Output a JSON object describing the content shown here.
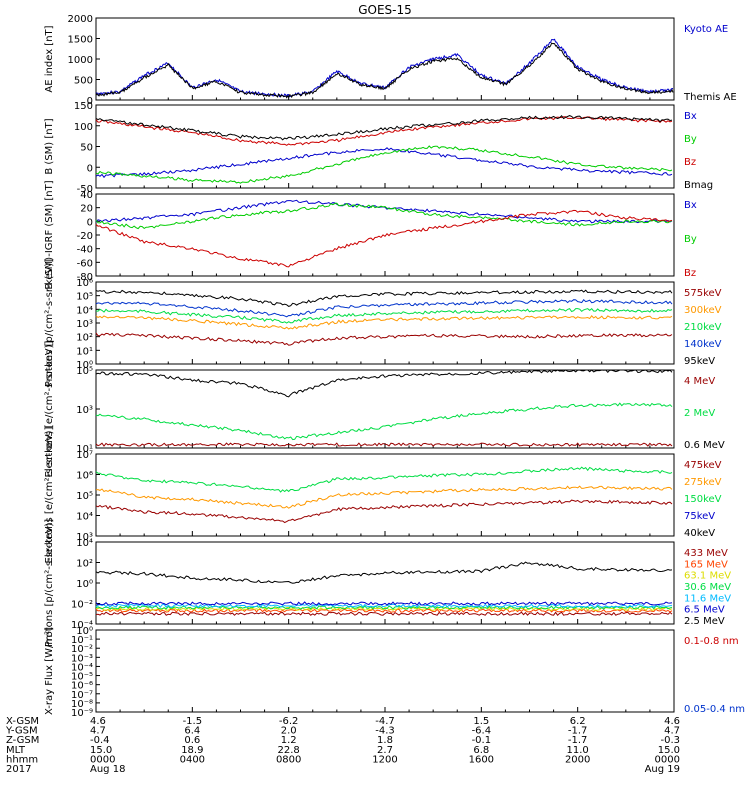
{
  "title": "GOES-15",
  "time_rows": [
    {
      "label": "X-GSM",
      "values": [
        "4.6",
        "-1.5",
        "-6.2",
        "-4.7",
        "1.5",
        "6.2",
        "4.6"
      ]
    },
    {
      "label": "Y-GSM",
      "values": [
        "4.7",
        "6.4",
        "2.0",
        "-4.3",
        "-6.4",
        "-1.7",
        "4.7"
      ]
    },
    {
      "label": "Z-GSM",
      "values": [
        "-0.4",
        "0.6",
        "1.2",
        "1.8",
        "-0.1",
        "-1.7",
        "-0.3"
      ]
    },
    {
      "label": "MLT",
      "values": [
        "15.0",
        "18.9",
        "22.8",
        "2.7",
        "6.8",
        "11.0",
        "15.0"
      ]
    },
    {
      "label": "hhmm",
      "values": [
        "0000",
        "0400",
        "0800",
        "1200",
        "1600",
        "2000",
        "0000"
      ]
    },
    {
      "label": "2017",
      "values": [
        "Aug 18",
        "",
        "",
        "",
        "",
        "",
        "Aug 19"
      ]
    }
  ],
  "chart_data": [
    {
      "type": "line",
      "ylabel": "AE index [nT]",
      "ylim": [
        0,
        2000
      ],
      "scale": "linear",
      "yticks": [
        "0",
        "500",
        "1000",
        "1500",
        "2000"
      ],
      "x_hours": [
        0,
        1,
        2,
        3,
        4,
        5,
        6,
        7,
        8,
        9,
        10,
        11,
        12,
        13,
        14,
        15,
        16,
        17,
        18,
        19,
        20,
        21,
        22,
        23,
        24
      ],
      "series": [
        {
          "name": "Kyoto AE",
          "color": "#0000cc",
          "values": [
            150,
            200,
            600,
            900,
            300,
            500,
            200,
            150,
            100,
            200,
            700,
            400,
            300,
            800,
            1000,
            1100,
            600,
            400,
            900,
            1500,
            800,
            500,
            300,
            200,
            250
          ]
        },
        {
          "name": "Themis AE",
          "color": "#000000",
          "values": [
            120,
            180,
            550,
            850,
            280,
            450,
            180,
            130,
            90,
            180,
            650,
            380,
            280,
            750,
            950,
            1000,
            550,
            380,
            850,
            1400,
            750,
            450,
            280,
            180,
            220
          ]
        }
      ]
    },
    {
      "type": "line",
      "ylabel": "B (SM) [nT]",
      "ylim": [
        -60,
        150
      ],
      "scale": "linear",
      "yticks": [
        "-50",
        "0",
        "50",
        "100",
        "150"
      ],
      "x_hours": [
        0,
        2,
        4,
        6,
        8,
        10,
        12,
        14,
        16,
        18,
        20,
        22,
        24
      ],
      "series": [
        {
          "name": "Bx",
          "color": "#0000cc",
          "values": [
            -30,
            -25,
            -15,
            0,
            15,
            30,
            40,
            25,
            10,
            -5,
            -15,
            -20,
            -25
          ]
        },
        {
          "name": "By",
          "color": "#00cc00",
          "values": [
            -20,
            -30,
            -40,
            -45,
            -30,
            0,
            30,
            45,
            35,
            20,
            0,
            -10,
            -15
          ]
        },
        {
          "name": "Bz",
          "color": "#cc0000",
          "values": [
            110,
            95,
            80,
            60,
            50,
            60,
            80,
            95,
            105,
            115,
            118,
            112,
            108
          ]
        },
        {
          "name": "Bmag",
          "color": "#000000",
          "values": [
            115,
            100,
            85,
            70,
            65,
            75,
            90,
            100,
            110,
            118,
            120,
            115,
            110
          ]
        }
      ]
    },
    {
      "type": "line",
      "ylabel": "B (SM)-IGRF (SM) [nT]",
      "ylim": [
        -80,
        40
      ],
      "scale": "linear",
      "yticks": [
        "-80",
        "-60",
        "-40",
        "-20",
        "0",
        "20",
        "40"
      ],
      "x_hours": [
        0,
        2,
        4,
        6,
        8,
        10,
        12,
        14,
        16,
        18,
        20,
        22,
        24
      ],
      "series": [
        {
          "name": "Bx",
          "color": "#0000cc",
          "values": [
            0,
            5,
            10,
            20,
            30,
            25,
            20,
            15,
            10,
            5,
            0,
            0,
            0
          ]
        },
        {
          "name": "By",
          "color": "#00cc00",
          "values": [
            0,
            -10,
            0,
            10,
            15,
            25,
            20,
            10,
            5,
            0,
            -5,
            0,
            0
          ]
        },
        {
          "name": "Bz",
          "color": "#cc0000",
          "values": [
            -5,
            -30,
            -40,
            -55,
            -65,
            -40,
            -20,
            -10,
            0,
            10,
            15,
            5,
            0
          ]
        }
      ]
    },
    {
      "type": "line",
      "ylabel": "Protons [p/(cm²-s-sr-keV)]",
      "ylim": [
        1,
        1000000
      ],
      "scale": "log",
      "yticks": [
        "10⁰",
        "10¹",
        "10²",
        "10³",
        "10⁴",
        "10⁵",
        "10⁶"
      ],
      "x_hours": [
        0,
        2,
        4,
        6,
        8,
        10,
        12,
        14,
        16,
        18,
        20,
        22,
        24
      ],
      "series": [
        {
          "name": "575keV",
          "color": "#990000",
          "values": [
            150,
            120,
            80,
            50,
            30,
            80,
            100,
            120,
            110,
            100,
            120,
            130,
            120
          ]
        },
        {
          "name": "300keV",
          "color": "#ff9900",
          "values": [
            3000,
            2500,
            1500,
            800,
            400,
            1200,
            1800,
            2000,
            2200,
            2500,
            2800,
            2500,
            2500
          ]
        },
        {
          "name": "210keV",
          "color": "#00dd44",
          "values": [
            8000,
            7000,
            4000,
            2500,
            1200,
            3500,
            5000,
            6000,
            7000,
            8000,
            9000,
            8000,
            7500
          ]
        },
        {
          "name": "140keV",
          "color": "#0033cc",
          "values": [
            30000,
            28000,
            15000,
            8000,
            3000,
            15000,
            20000,
            25000,
            30000,
            35000,
            40000,
            35000,
            30000
          ]
        },
        {
          "name": "95keV",
          "color": "#000000",
          "values": [
            200000,
            180000,
            100000,
            60000,
            20000,
            90000,
            130000,
            150000,
            170000,
            190000,
            200000,
            190000,
            180000
          ]
        }
      ]
    },
    {
      "type": "line",
      "ylabel": "Electrons [e/(cm²-s-sr-keV)]",
      "ylim": [
        10,
        100000
      ],
      "scale": "log",
      "yticks": [
        "10¹",
        "10³",
        "10⁵"
      ],
      "x_hours": [
        0,
        2,
        4,
        6,
        8,
        10,
        12,
        14,
        16,
        18,
        20,
        22,
        24
      ],
      "series": [
        {
          "name": "4 MeV",
          "color": "#990000",
          "values": [
            15,
            15,
            15,
            15,
            15,
            15,
            15,
            15,
            15,
            15,
            15,
            15,
            15
          ]
        },
        {
          "name": "2 MeV",
          "color": "#00dd44",
          "values": [
            500,
            300,
            150,
            80,
            30,
            60,
            120,
            300,
            600,
            1000,
            1500,
            1800,
            1500
          ]
        },
        {
          "name": "0.6 MeV",
          "color": "#000000",
          "values": [
            70000,
            60000,
            30000,
            20000,
            5000,
            30000,
            50000,
            60000,
            70000,
            80000,
            90000,
            90000,
            85000
          ]
        }
      ]
    },
    {
      "type": "line",
      "ylabel": "Electrons [e/(cm²-s-sr-keV)]",
      "ylim": [
        1000,
        10000000
      ],
      "scale": "log",
      "yticks": [
        "10³",
        "10⁴",
        "10⁵",
        "10⁶",
        "10⁷"
      ],
      "x_hours": [
        0,
        2,
        4,
        6,
        8,
        10,
        12,
        14,
        16,
        18,
        20,
        22,
        24
      ],
      "series": [
        {
          "name": "475keV",
          "color": "#990000",
          "values": [
            30000,
            15000,
            12000,
            8000,
            5000,
            20000,
            25000,
            30000,
            35000,
            40000,
            50000,
            45000,
            40000
          ]
        },
        {
          "name": "275keV",
          "color": "#ff9900",
          "values": [
            200000,
            80000,
            60000,
            40000,
            25000,
            100000,
            120000,
            150000,
            180000,
            200000,
            250000,
            220000,
            200000
          ]
        },
        {
          "name": "150keV",
          "color": "#00dd44",
          "values": [
            1200000,
            500000,
            400000,
            250000,
            150000,
            600000,
            700000,
            900000,
            1000000,
            1500000,
            2000000,
            1500000,
            1300000
          ]
        },
        {
          "name": "75keV",
          "color": "#0000cc",
          "values": [
            0,
            0,
            0,
            0,
            0,
            0,
            0,
            0,
            0,
            0,
            0,
            0,
            0
          ]
        },
        {
          "name": "40keV",
          "color": "#000000",
          "values": [
            0,
            0,
            0,
            0,
            0,
            0,
            0,
            0,
            0,
            0,
            0,
            0,
            0
          ]
        }
      ]
    },
    {
      "type": "line",
      "ylabel": "Protons [p/(cm²-s-sr-keV)]",
      "ylim": [
        0.0001,
        10000
      ],
      "scale": "log",
      "yticks": [
        "10⁻⁴",
        "10⁻²",
        "10⁰",
        "10²",
        "10⁴"
      ],
      "x_hours": [
        0,
        2,
        4,
        6,
        8,
        10,
        12,
        14,
        16,
        18,
        20,
        22,
        24
      ],
      "series": [
        {
          "name": "433 MeV",
          "color": "#990000",
          "values": [
            0.001,
            0.001,
            0.001,
            0.001,
            0.001,
            0.001,
            0.001,
            0.001,
            0.001,
            0.001,
            0.001,
            0.001,
            0.001
          ]
        },
        {
          "name": "165 MeV",
          "color": "#ff4400",
          "values": [
            0.002,
            0.002,
            0.002,
            0.002,
            0.002,
            0.002,
            0.002,
            0.002,
            0.002,
            0.002,
            0.002,
            0.002,
            0.002
          ]
        },
        {
          "name": "63.1 MeV",
          "color": "#dddd00",
          "values": [
            0.003,
            0.003,
            0.003,
            0.003,
            0.003,
            0.003,
            0.003,
            0.003,
            0.003,
            0.003,
            0.003,
            0.003,
            0.003
          ]
        },
        {
          "name": "30.6 MeV",
          "color": "#00dd44",
          "values": [
            0.004,
            0.004,
            0.004,
            0.004,
            0.004,
            0.004,
            0.004,
            0.004,
            0.004,
            0.004,
            0.004,
            0.004,
            0.004
          ]
        },
        {
          "name": "11.6 MeV",
          "color": "#00bbff",
          "values": [
            0.006,
            0.006,
            0.006,
            0.006,
            0.006,
            0.006,
            0.006,
            0.006,
            0.006,
            0.006,
            0.006,
            0.006,
            0.006
          ]
        },
        {
          "name": "6.5 MeV",
          "color": "#0000cc",
          "values": [
            0.01,
            0.01,
            0.01,
            0.01,
            0.01,
            0.01,
            0.01,
            0.01,
            0.01,
            0.01,
            0.01,
            0.01,
            0.01
          ]
        },
        {
          "name": "2.5 MeV",
          "color": "#000000",
          "values": [
            12,
            8,
            3,
            2,
            1,
            5,
            10,
            12,
            15,
            100,
            25,
            20,
            15
          ]
        }
      ]
    },
    {
      "type": "line",
      "ylabel": "X-ray Flux [W/m²]",
      "ylim": [
        1e-09,
        1
      ],
      "scale": "log",
      "yticks": [
        "10⁻⁹",
        "10⁻⁸",
        "10⁻⁷",
        "10⁻⁶",
        "10⁻⁵",
        "10⁻⁴",
        "10⁻³",
        "10⁻²",
        "10⁻¹",
        "10⁰"
      ],
      "x_hours": [
        0,
        24
      ],
      "series": [
        {
          "name": "0.1-0.8 nm",
          "color": "#cc0000",
          "values": []
        },
        {
          "name": "0.05-0.4 nm",
          "color": "#0033cc",
          "values": []
        }
      ]
    }
  ]
}
